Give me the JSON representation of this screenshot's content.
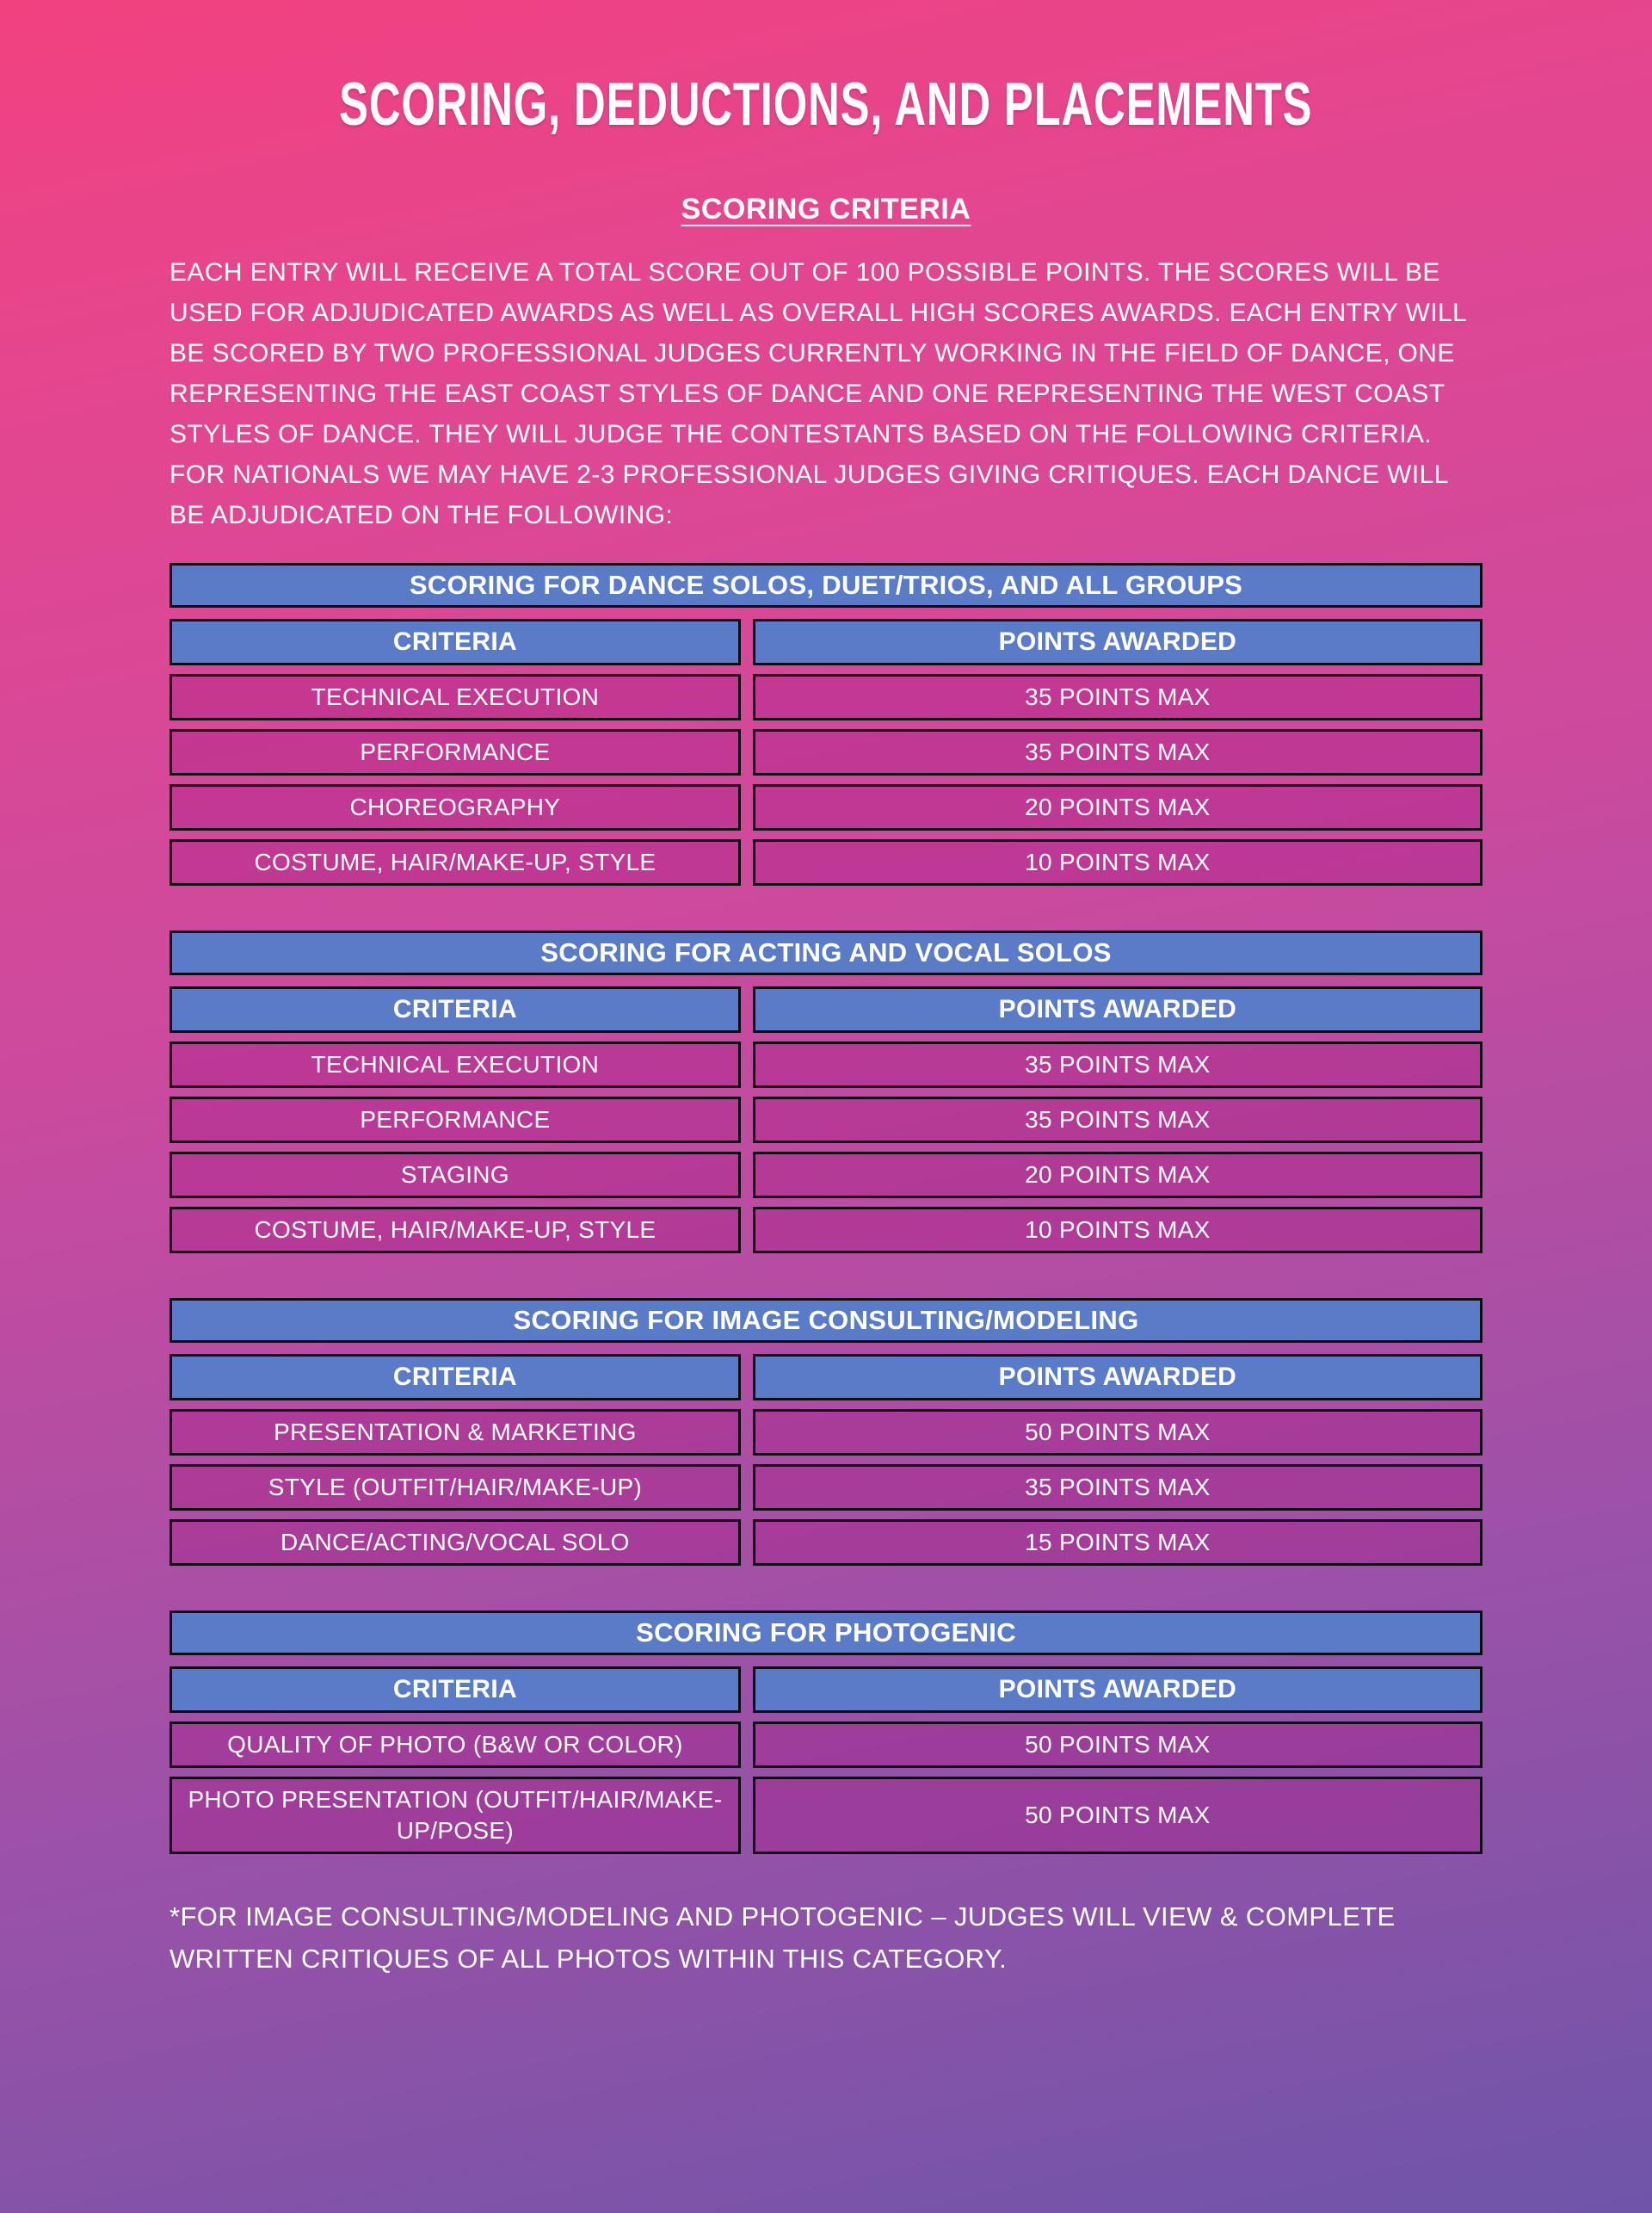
{
  "page": {
    "title": "SCORING, DEDUCTIONS, AND PLACEMENTS",
    "section_heading": "SCORING CRITERIA",
    "intro": "EACH ENTRY WILL RECEIVE A TOTAL SCORE OUT OF 100 POSSIBLE POINTS. THE SCORES WILL BE USED FOR ADJUDICATED AWARDS AS WELL AS OVERALL HIGH SCORES AWARDS. EACH ENTRY WILL BE SCORED BY TWO PROFESSIONAL JUDGES CURRENTLY WORKING IN THE FIELD OF DANCE, ONE REPRESENTING THE EAST COAST STYLES OF DANCE AND ONE REPRESENTING THE WEST COAST STYLES OF DANCE. THEY WILL JUDGE THE CONTESTANTS BASED ON THE FOLLOWING CRITERIA. FOR NATIONALS WE MAY HAVE 2-3 PROFESSIONAL JUDGES GIVING CRITIQUES. EACH DANCE WILL BE ADJUDICATED ON THE FOLLOWING:",
    "footnote": "*FOR IMAGE CONSULTING/MODELING AND PHOTOGENIC – JUDGES WILL VIEW & COMPLETE WRITTEN CRITIQUES OF ALL PHOTOS WITHIN THIS CATEGORY."
  },
  "colors": {
    "header_blue": "#5a7bc8",
    "row_magenta": "rgba(168,28,134,0.38)",
    "gradient_top": "#f2417f",
    "gradient_bottom": "#6e55a9",
    "border_black": "#0e0e12",
    "text_white": "#ffffff"
  },
  "tables": [
    {
      "title": "SCORING FOR DANCE SOLOS, DUET/TRIOS, AND ALL GROUPS",
      "columns": [
        "CRITERIA",
        "POINTS AWARDED"
      ],
      "rows": [
        [
          "TECHNICAL EXECUTION",
          "35 POINTS MAX"
        ],
        [
          "PERFORMANCE",
          "35 POINTS MAX"
        ],
        [
          "CHOREOGRAPHY",
          "20 POINTS MAX"
        ],
        [
          "COSTUME, HAIR/MAKE-UP, STYLE",
          "10 POINTS MAX"
        ]
      ]
    },
    {
      "title": "SCORING FOR ACTING AND VOCAL SOLOS",
      "columns": [
        "CRITERIA",
        "POINTS AWARDED"
      ],
      "rows": [
        [
          "TECHNICAL EXECUTION",
          "35 POINTS MAX"
        ],
        [
          "PERFORMANCE",
          "35 POINTS MAX"
        ],
        [
          "STAGING",
          "20 POINTS MAX"
        ],
        [
          "COSTUME, HAIR/MAKE-UP, STYLE",
          "10 POINTS MAX"
        ]
      ]
    },
    {
      "title": "SCORING FOR IMAGE CONSULTING/MODELING",
      "columns": [
        "CRITERIA",
        "POINTS AWARDED"
      ],
      "rows": [
        [
          "PRESENTATION & MARKETING",
          "50 POINTS MAX"
        ],
        [
          "STYLE (OUTFIT/HAIR/MAKE-UP)",
          "35 POINTS MAX"
        ],
        [
          "DANCE/ACTING/VOCAL SOLO",
          "15 POINTS MAX"
        ]
      ]
    },
    {
      "title": "SCORING FOR PHOTOGENIC",
      "columns": [
        "CRITERIA",
        "POINTS AWARDED"
      ],
      "rows": [
        [
          "QUALITY OF PHOTO (B&W OR COLOR)",
          "50 POINTS MAX"
        ],
        [
          "PHOTO PRESENTATION (OUTFIT/HAIR/MAKE-UP/POSE)",
          "50 POINTS MAX"
        ]
      ]
    }
  ]
}
